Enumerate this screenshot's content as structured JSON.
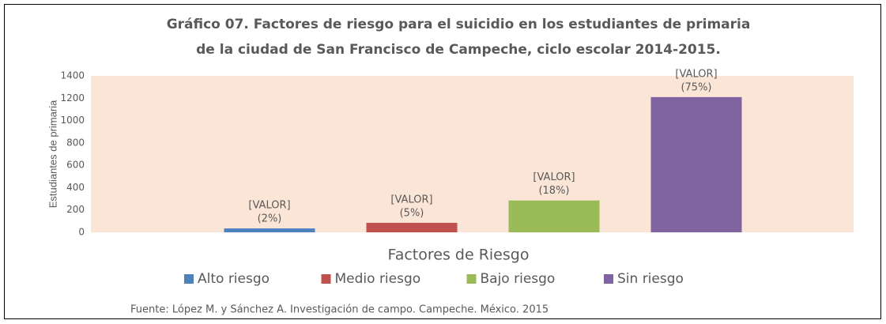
{
  "chart_data": {
    "type": "bar",
    "title": [
      "Gráfico 07. Factores de riesgo para el suicidio en los estudiantes de primaria",
      "de la ciudad de San Francisco de Campeche, ciclo escolar 2014-2015."
    ],
    "ylabel": "Estudiantes de primaria",
    "xlabel": "Factores de Riesgo",
    "source": "Fuente: López M. y Sánchez A. Investigación de campo. Campeche. México. 2015",
    "series": [
      {
        "name": "Alto riesgo",
        "color": "#4f81bd",
        "values": [
          35
        ],
        "data_label": [
          "[VALOR]",
          "(2%)"
        ]
      },
      {
        "name": "Medio riesgo",
        "color": "#c0504d",
        "values": [
          85
        ],
        "data_label": [
          "[VALOR]",
          "(5%)"
        ]
      },
      {
        "name": "Bajo riesgo",
        "color": "#9bbb59",
        "values": [
          285
        ],
        "data_label": [
          "[VALOR]",
          "(18%)"
        ]
      },
      {
        "name": "Sin riesgo",
        "color": "#8064a2",
        "values": [
          1210
        ],
        "data_label": [
          "[VALOR]",
          "(75%)"
        ]
      }
    ],
    "ylim": [
      0,
      1400
    ],
    "yticks": [
      0,
      200,
      400,
      600,
      800,
      1000,
      1200,
      1400
    ],
    "grid": false,
    "legend": "bottom",
    "plot_background": "#fbe5d6"
  }
}
